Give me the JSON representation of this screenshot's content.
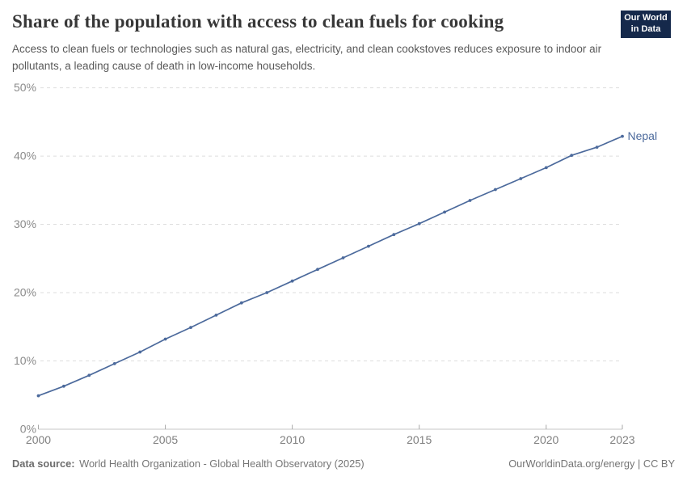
{
  "header": {
    "title": "Share of the population with access to clean fuels for cooking",
    "subtitle": "Access to clean fuels or technologies such as natural gas, electricity, and clean cookstoves reduces exposure to indoor air pollutants, a leading cause of death in low-income households.",
    "logo": {
      "line1": "Our World",
      "line2": "in Data",
      "bg_color": "#15294b",
      "bar_color": "#dc3830"
    }
  },
  "chart_data": {
    "type": "line",
    "title": "Share of the population with access to clean fuels for cooking",
    "xlabel": "",
    "ylabel": "",
    "xlim": [
      2000,
      2023
    ],
    "ylim": [
      0,
      50
    ],
    "grid": "horizontal-dashed",
    "xticks": [
      2000,
      2005,
      2010,
      2015,
      2020,
      2023
    ],
    "yticks": [
      0,
      10,
      20,
      30,
      40,
      50
    ],
    "ytick_suffix": "%",
    "x": [
      2000,
      2001,
      2002,
      2003,
      2004,
      2005,
      2006,
      2007,
      2008,
      2009,
      2010,
      2011,
      2012,
      2013,
      2014,
      2015,
      2016,
      2017,
      2018,
      2019,
      2020,
      2021,
      2022,
      2023
    ],
    "series": [
      {
        "name": "Nepal",
        "color": "#4c6a9c",
        "values": [
          4.9,
          6.3,
          7.9,
          9.6,
          11.3,
          13.2,
          14.9,
          16.7,
          18.5,
          20.0,
          21.7,
          23.4,
          25.1,
          26.8,
          28.5,
          30.1,
          31.8,
          33.5,
          35.1,
          36.7,
          38.3,
          40.1,
          41.3,
          42.9
        ]
      }
    ],
    "end_label": "Nepal",
    "legend_position": "end-of-line"
  },
  "footer": {
    "source_label": "Data source:",
    "source_text": "World Health Organization - Global Health Observatory (2025)",
    "credit": "OurWorldinData.org/energy | CC BY"
  }
}
